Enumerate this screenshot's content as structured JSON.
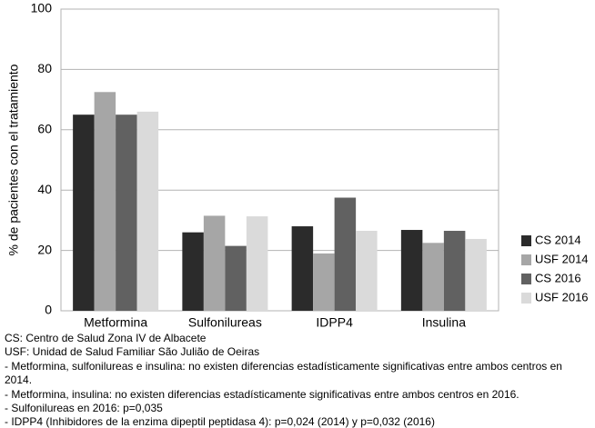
{
  "chart_data": {
    "type": "bar",
    "y_label": "% de pacientes con el tratamiento",
    "categories": [
      "Metformina",
      "Sulfonilureas",
      "IDPP4",
      "Insulina"
    ],
    "series": [
      {
        "name": "CS 2014",
        "color": "#2b2b2b",
        "values": [
          65,
          26,
          28,
          26.8
        ]
      },
      {
        "name": "USF 2014",
        "color": "#a6a6a6",
        "values": [
          72.5,
          31.5,
          19,
          22.5
        ]
      },
      {
        "name": "CS 2016",
        "color": "#616161",
        "values": [
          65,
          21.5,
          37.5,
          26.5
        ]
      },
      {
        "name": "USF 2016",
        "color": "#dadada",
        "values": [
          66,
          31.3,
          26.5,
          23.8
        ]
      }
    ],
    "ylim": [
      0,
      100
    ],
    "yticks": [
      0,
      20,
      40,
      60,
      80,
      100
    ],
    "grid": true,
    "legend": "right",
    "notes": [
      "CS: Centro de Salud Zona IV de Albacete",
      "USF: Unidad de Salud Familiar São Julião de Oeiras",
      "- Metformina, sulfonilureas e insulina: no existen diferencias estadísticamente significativas entre ambos centros en 2014.",
      "- Metformina, insulina: no existen diferencias estadísticamente significativas entre ambos centros en 2016.",
      "- Sulfonilureas en 2016: p=0,035",
      "- IDPP4 (Inhibidores de la enzima dipeptil peptidasa 4):  p=0,024 (2014) y p=0,032 (2016)"
    ]
  }
}
